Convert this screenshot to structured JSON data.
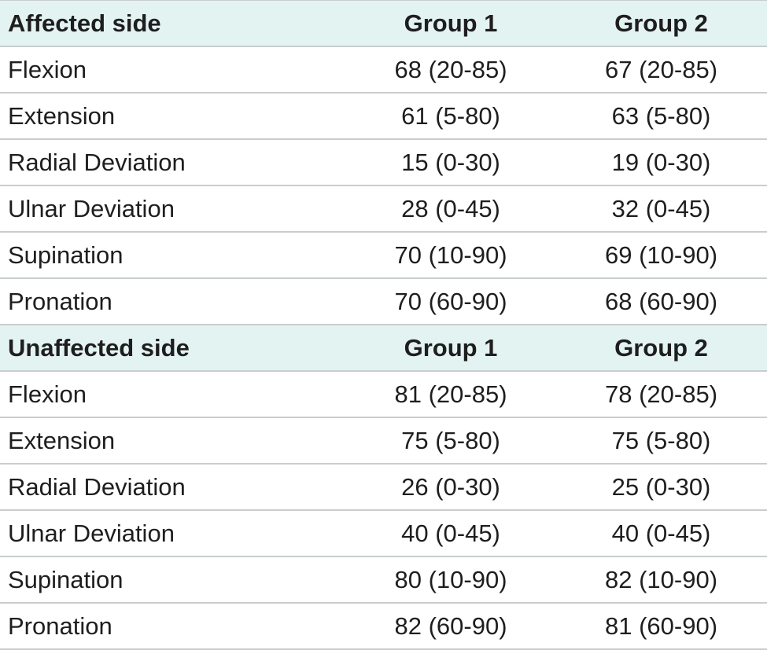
{
  "table": {
    "sections": [
      {
        "header": "Affected side",
        "group1_label": "Group 1",
        "group2_label": "Group 2",
        "rows": [
          {
            "label": "Flexion",
            "group1": "68 (20-85)",
            "group2": "67 (20-85)"
          },
          {
            "label": "Extension",
            "group1": "61 (5-80)",
            "group2": "63 (5-80)"
          },
          {
            "label": "Radial Deviation",
            "group1": "15 (0-30)",
            "group2": "19 (0-30)"
          },
          {
            "label": "Ulnar Deviation",
            "group1": "28 (0-45)",
            "group2": "32 (0-45)"
          },
          {
            "label": "Supination",
            "group1": "70 (10-90)",
            "group2": "69 (10-90)"
          },
          {
            "label": "Pronation",
            "group1": "70 (60-90)",
            "group2": "68 (60-90)"
          }
        ]
      },
      {
        "header": "Unaffected side",
        "group1_label": "Group 1",
        "group2_label": "Group 2",
        "rows": [
          {
            "label": "Flexion",
            "group1": "81 (20-85)",
            "group2": "78 (20-85)"
          },
          {
            "label": "Extension",
            "group1": "75 (5-80)",
            "group2": "75 (5-80)"
          },
          {
            "label": "Radial Deviation",
            "group1": "26 (0-30)",
            "group2": "25 (0-30)"
          },
          {
            "label": "Ulnar Deviation",
            "group1": "40 (0-45)",
            "group2": "40 (0-45)"
          },
          {
            "label": "Supination",
            "group1": "80 (10-90)",
            "group2": "82 (10-90)"
          },
          {
            "label": "Pronation",
            "group1": "82 (60-90)",
            "group2": "81 (60-90)"
          }
        ]
      }
    ],
    "colors": {
      "header_bg": "#e3f3f2",
      "border": "#c9cdcd",
      "text": "#1e1e1e"
    }
  }
}
